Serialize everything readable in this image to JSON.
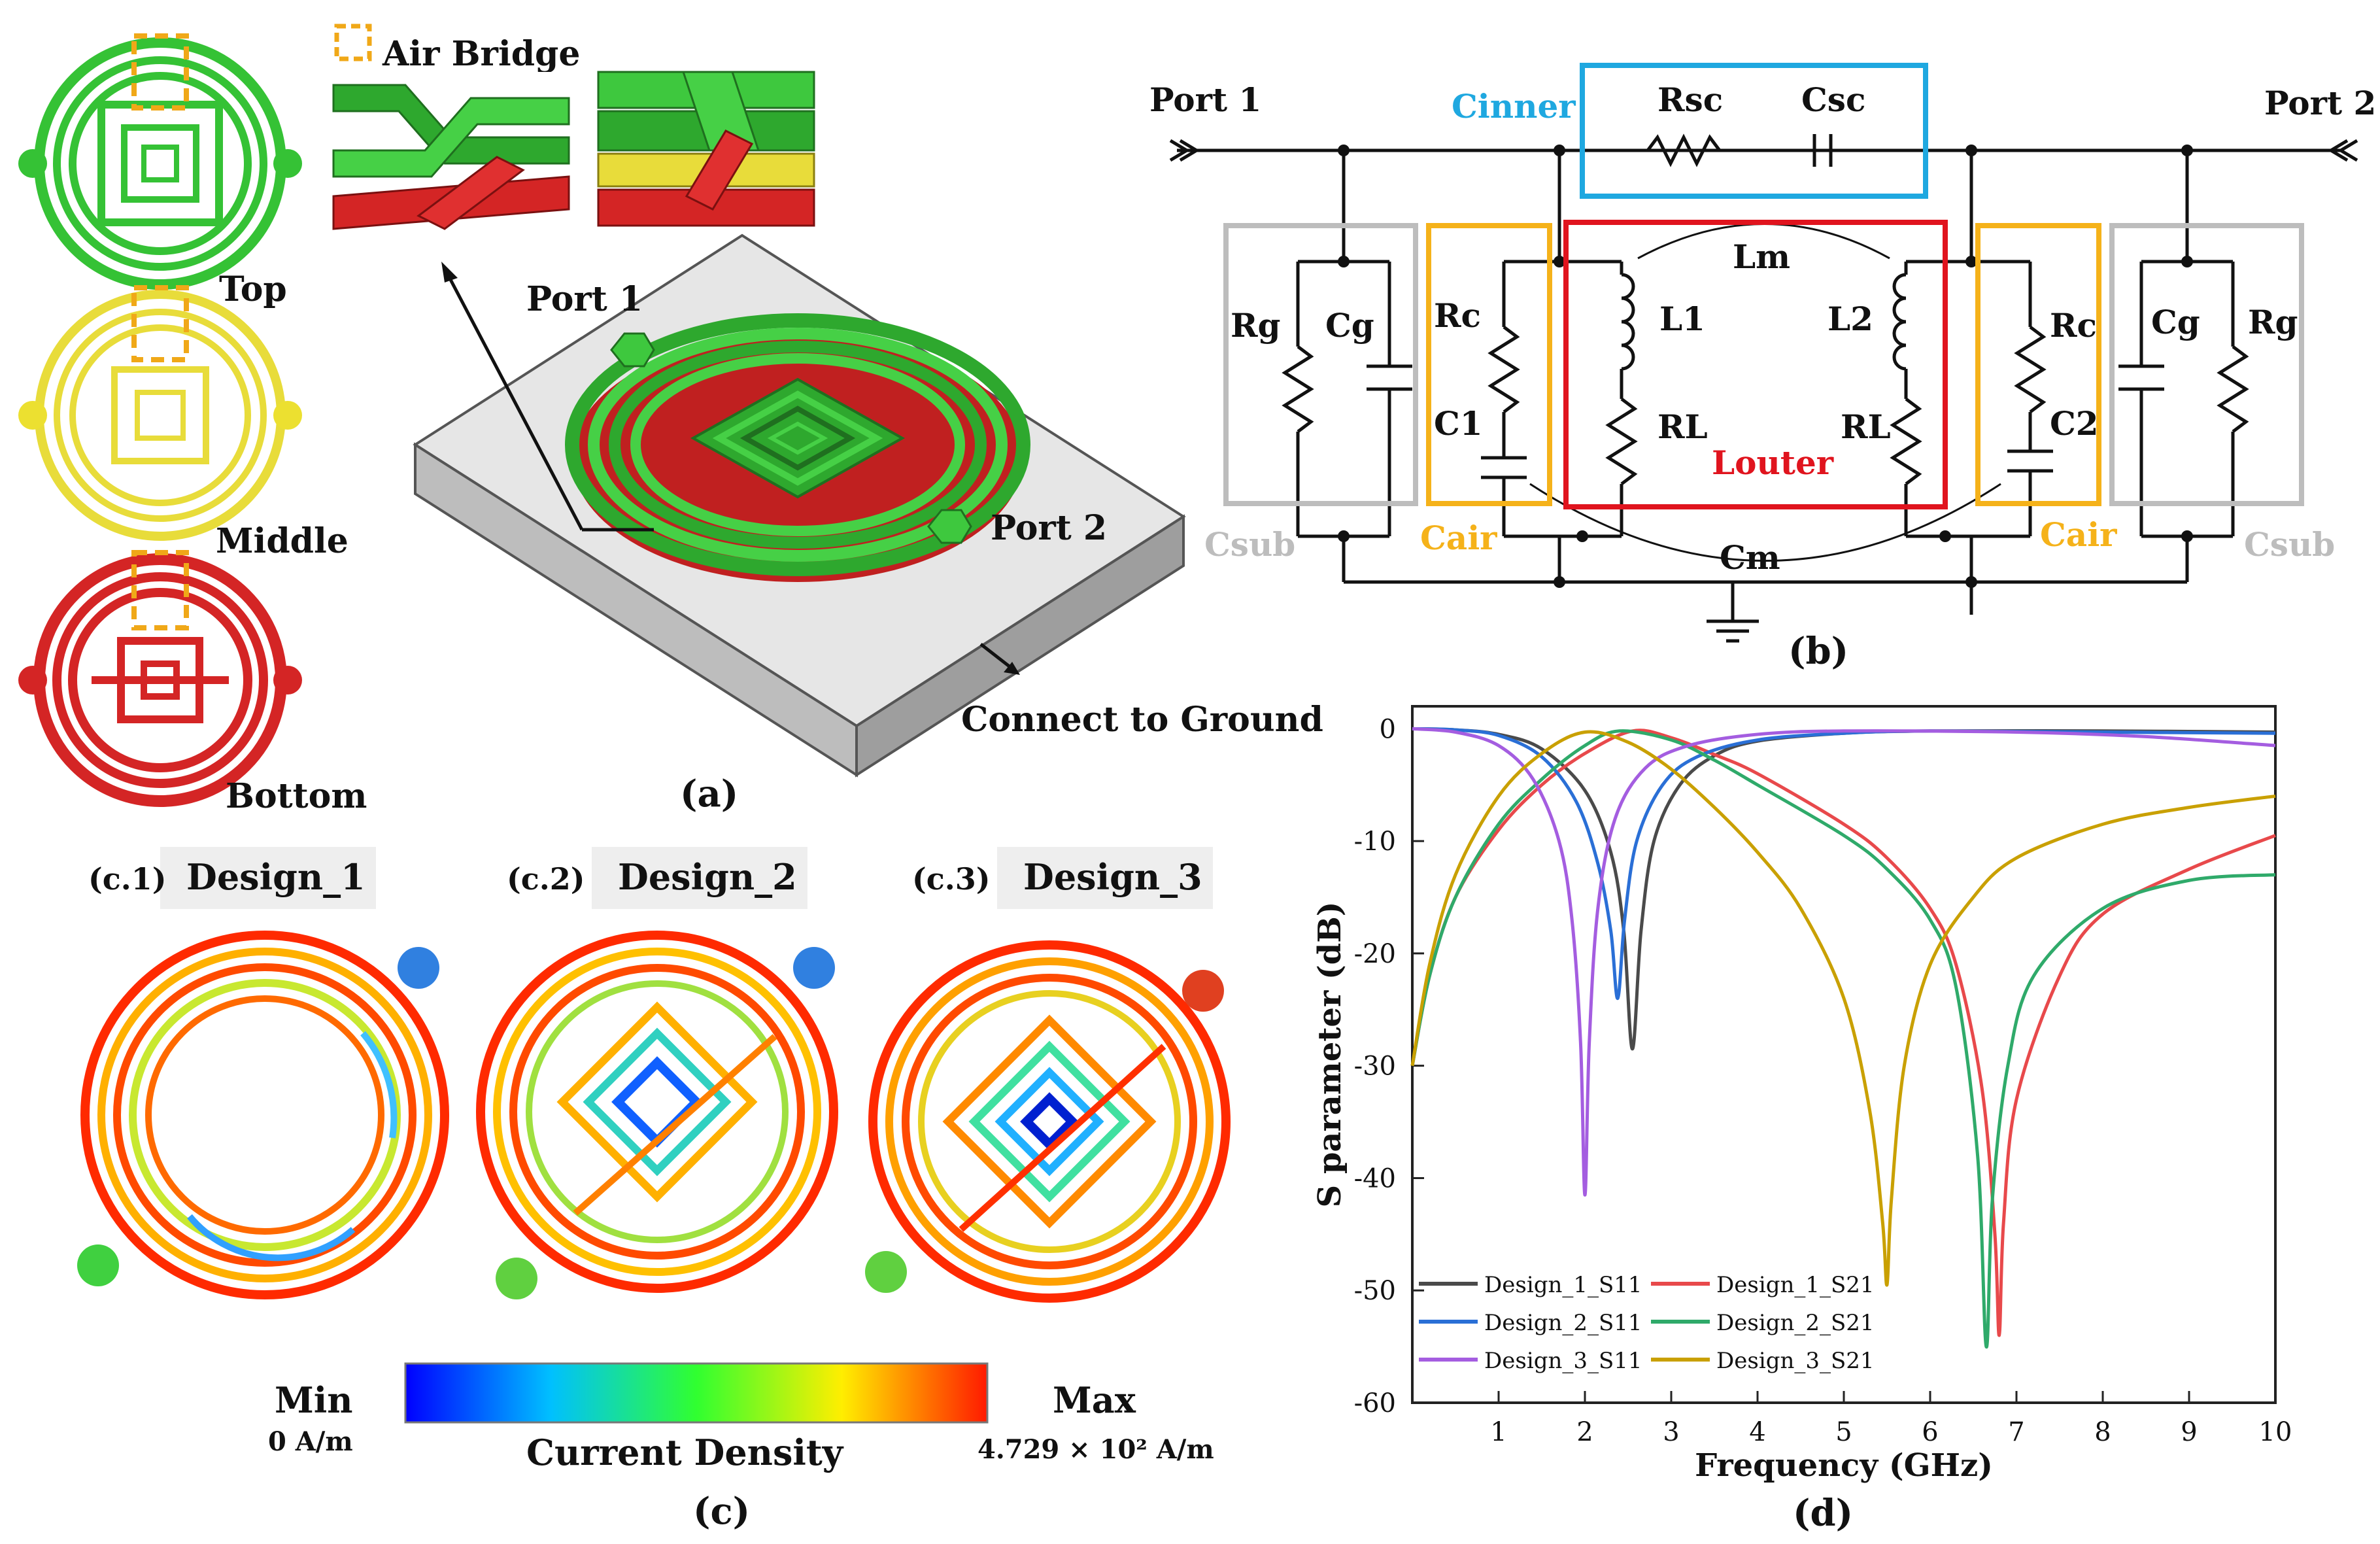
{
  "panel_a": {
    "layer_top": "Top",
    "layer_middle": "Middle",
    "layer_bottom": "Bottom",
    "air_bridge": "Air Bridge",
    "port1": "Port 1",
    "port2": "Port 2",
    "ground": "Connect to Ground",
    "caption": "(a)",
    "colors": {
      "top": "#35c235",
      "middle": "#e8dc3a",
      "bottom": "#d42525",
      "bridge_box": "#f0a818",
      "substrate": "#dcdcdc"
    }
  },
  "panel_b": {
    "port1": "Port 1",
    "port2": "Port 2",
    "cinner": "Cinner",
    "rsc": "Rsc",
    "csc": "Csc",
    "lm": "Lm",
    "cm": "Cm",
    "louter": "Louter",
    "rg_left": "Rg",
    "cg_left": "Cg",
    "rc_left": "Rc",
    "c1": "C1",
    "l1": "L1",
    "rl_left": "RL",
    "l2": "L2",
    "rl_right": "RL",
    "rc_right": "Rc",
    "c2": "C2",
    "cg_right": "Cg",
    "rg_right": "Rg",
    "csub_left": "Csub",
    "csub_right": "Csub",
    "cair_left": "Cair",
    "cair_right": "Cair",
    "caption": "(b)",
    "colors": {
      "cinner": "#1fa8e0",
      "louter": "#e0141e",
      "cair": "#f5b21a",
      "csub": "#bdbdbd"
    }
  },
  "panel_c": {
    "sub1_tag": "(c.1)",
    "sub1_name": "Design_1",
    "sub2_tag": "(c.2)",
    "sub2_name": "Design_2",
    "sub3_tag": "(c.3)",
    "sub3_name": "Design_3",
    "min_label": "Min",
    "min_value": "0 A/m",
    "max_label": "Max",
    "max_value": "4.729 × 10² A/m",
    "colorbar_label": "Current Density",
    "caption": "(c)"
  },
  "panel_d": {
    "caption": "(d)"
  },
  "chart_data": {
    "type": "line",
    "title": "",
    "xlabel": "Frequency (GHz)",
    "ylabel": "S parameter (dB)",
    "xlim": [
      0,
      10
    ],
    "ylim": [
      -60,
      2
    ],
    "xticks": [
      1,
      2,
      3,
      4,
      5,
      6,
      7,
      8,
      9,
      10
    ],
    "yticks": [
      0,
      -10,
      -20,
      -30,
      -40,
      -50,
      -60
    ],
    "legend_position": "bottom-left",
    "series": [
      {
        "name": "Design_1_S11",
        "color": "#4a4a4a",
        "x": [
          0,
          0.5,
          1.0,
          1.5,
          2.0,
          2.3,
          2.45,
          2.55,
          2.65,
          2.8,
          3.1,
          3.5,
          4.0,
          5.0,
          6.0,
          8.0,
          10.0
        ],
        "y": [
          0,
          -0.1,
          -0.5,
          -1.8,
          -5.5,
          -11,
          -18,
          -28.5,
          -18,
          -10,
          -5,
          -2.4,
          -1.1,
          -0.4,
          -0.2,
          -0.2,
          -0.3
        ]
      },
      {
        "name": "Design_1_S21",
        "color": "#e8494b",
        "x": [
          0,
          0.2,
          0.5,
          1.0,
          1.5,
          2.0,
          2.55,
          3.0,
          3.5,
          4.0,
          5.0,
          5.5,
          6.0,
          6.3,
          6.6,
          6.75,
          6.8,
          6.85,
          7.0,
          7.5,
          8.0,
          9.0,
          10.0
        ],
        "y": [
          -30,
          -22,
          -15,
          -9,
          -5,
          -2.2,
          -0.2,
          -0.8,
          -2.3,
          -4,
          -8.5,
          -11.5,
          -16,
          -21,
          -32,
          -45,
          -54,
          -44,
          -33,
          -22,
          -16.5,
          -12.5,
          -9.5
        ]
      },
      {
        "name": "Design_2_S11",
        "color": "#2a6fd6",
        "x": [
          0,
          0.5,
          1.0,
          1.5,
          1.9,
          2.15,
          2.3,
          2.38,
          2.46,
          2.6,
          2.9,
          3.3,
          4.0,
          5.0,
          6.0,
          8.0,
          10.0
        ],
        "y": [
          0,
          -0.1,
          -0.6,
          -2.5,
          -6.5,
          -12,
          -18,
          -24,
          -17,
          -10,
          -5,
          -2.5,
          -1,
          -0.4,
          -0.2,
          -0.3,
          -0.4
        ]
      },
      {
        "name": "Design_2_S21",
        "color": "#2faa6a",
        "x": [
          0,
          0.2,
          0.5,
          1.0,
          1.5,
          2.0,
          2.4,
          3.0,
          3.5,
          4.0,
          5.0,
          5.5,
          6.0,
          6.3,
          6.55,
          6.65,
          6.72,
          6.9,
          7.2,
          8.0,
          9.0,
          10.0
        ],
        "y": [
          -30,
          -22,
          -15,
          -8.5,
          -4.5,
          -1.5,
          -0.2,
          -1,
          -2.8,
          -5,
          -9.5,
          -12.5,
          -17,
          -23,
          -38,
          -55,
          -42,
          -30,
          -22,
          -16,
          -13.5,
          -13
        ]
      },
      {
        "name": "Design_3_S11",
        "color": "#a45de0",
        "x": [
          0,
          0.5,
          1.0,
          1.4,
          1.7,
          1.85,
          1.95,
          2.0,
          2.05,
          2.15,
          2.35,
          2.7,
          3.2,
          4.0,
          5.0,
          7.0,
          8.5,
          10.0
        ],
        "y": [
          0,
          -0.3,
          -1.5,
          -4.5,
          -10,
          -17,
          -28,
          -41.5,
          -28,
          -16,
          -8,
          -3.5,
          -1.5,
          -0.5,
          -0.2,
          -0.3,
          -0.7,
          -1.5
        ]
      },
      {
        "name": "Design_3_S21",
        "color": "#c9a000",
        "x": [
          0,
          0.2,
          0.5,
          1.0,
          1.5,
          2.0,
          2.5,
          3.0,
          3.5,
          4.0,
          4.5,
          5.0,
          5.3,
          5.45,
          5.5,
          5.55,
          5.7,
          6.0,
          6.5,
          7.0,
          8.0,
          9.0,
          10.0
        ],
        "y": [
          -30,
          -21,
          -13,
          -6,
          -2.2,
          -0.3,
          -1.2,
          -3.6,
          -7,
          -11,
          -16,
          -24,
          -34,
          -44,
          -49.5,
          -42,
          -30,
          -21,
          -15,
          -11.5,
          -8.5,
          -7,
          -6
        ]
      }
    ]
  }
}
